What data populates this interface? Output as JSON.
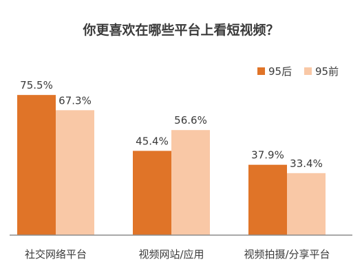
{
  "chart_data": {
    "type": "bar",
    "title": "你更喜欢在哪些平台上看短视频？",
    "categories": [
      "社交网络平台",
      "视频网站/应用",
      "视频拍摄/分享平台"
    ],
    "series": [
      {
        "name": "95后",
        "values": [
          75.5,
          45.4,
          37.9
        ],
        "labels": [
          "75.5%",
          "45.4%",
          "37.9%"
        ],
        "color": "#E07428"
      },
      {
        "name": "95前",
        "values": [
          67.3,
          56.6,
          33.4
        ],
        "labels": [
          "67.3%",
          "56.6%",
          "33.4%"
        ],
        "color": "#F9C8A6"
      }
    ],
    "ylim": [
      0,
      100
    ],
    "grid": false,
    "legend": "top-right",
    "colors": {
      "text": "#3a3a3a",
      "axis": "#8c8c8c"
    }
  }
}
